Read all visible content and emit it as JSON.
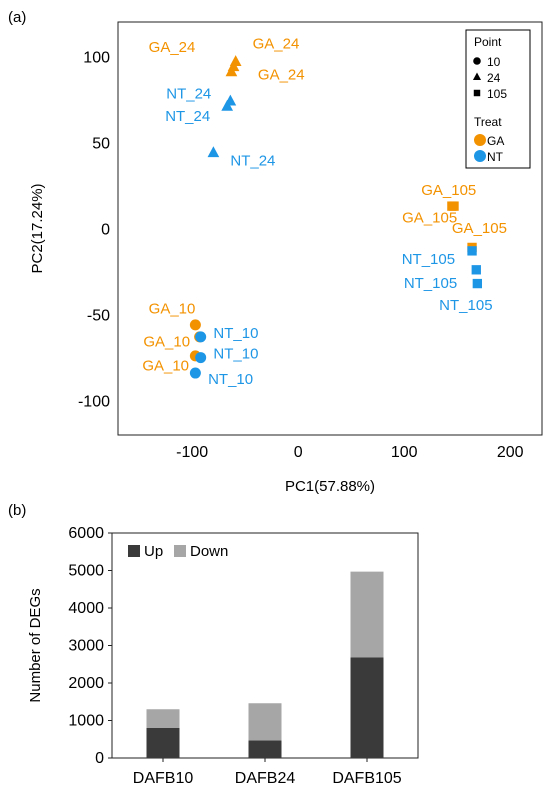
{
  "chart_data": [
    {
      "type": "scatter",
      "panel_label": "(a)",
      "xlabel": "PC1(57.88%)",
      "ylabel": "PC2(17.24%)",
      "xlim": [
        -170,
        230
      ],
      "ylim": [
        -120,
        120
      ],
      "x_ticks": [
        -100,
        0,
        100,
        200
      ],
      "y_ticks": [
        -100,
        -50,
        0,
        50,
        100
      ],
      "grid": false,
      "legend": {
        "placement": "top-right",
        "shape_title": "Point",
        "shapes": [
          {
            "label": "10",
            "shape": "circle"
          },
          {
            "label": "24",
            "shape": "triangle"
          },
          {
            "label": "105",
            "shape": "square"
          }
        ],
        "color_title": "Treat",
        "colors": [
          {
            "label": "GA",
            "color": "#f39200"
          },
          {
            "label": "NT",
            "color": "#1e96e6"
          }
        ]
      },
      "points": [
        {
          "x": -59,
          "y": 97,
          "treat": "GA",
          "shape": "triangle"
        },
        {
          "x": -61,
          "y": 94,
          "treat": "GA",
          "shape": "triangle"
        },
        {
          "x": -63,
          "y": 91,
          "treat": "GA",
          "shape": "triangle"
        },
        {
          "x": -64,
          "y": 74,
          "treat": "NT",
          "shape": "triangle"
        },
        {
          "x": -67,
          "y": 71,
          "treat": "NT",
          "shape": "triangle"
        },
        {
          "x": -80,
          "y": 44,
          "treat": "NT",
          "shape": "triangle"
        },
        {
          "x": 145,
          "y": 13,
          "treat": "GA",
          "shape": "square"
        },
        {
          "x": 147,
          "y": 13,
          "treat": "GA",
          "shape": "square"
        },
        {
          "x": 164,
          "y": -11,
          "treat": "GA",
          "shape": "square"
        },
        {
          "x": 164,
          "y": -13,
          "treat": "NT",
          "shape": "square"
        },
        {
          "x": 168,
          "y": -24,
          "treat": "NT",
          "shape": "square"
        },
        {
          "x": 169,
          "y": -32,
          "treat": "NT",
          "shape": "square"
        },
        {
          "x": -97,
          "y": -56,
          "treat": "GA",
          "shape": "circle"
        },
        {
          "x": -93,
          "y": -63,
          "treat": "GA",
          "shape": "circle"
        },
        {
          "x": -97,
          "y": -74,
          "treat": "GA",
          "shape": "circle"
        },
        {
          "x": -92,
          "y": -63,
          "treat": "NT",
          "shape": "circle"
        },
        {
          "x": -92,
          "y": -75,
          "treat": "NT",
          "shape": "circle"
        },
        {
          "x": -97,
          "y": -84,
          "treat": "NT",
          "shape": "circle"
        }
      ],
      "annotations": [
        {
          "text": "GA_24",
          "treat": "GA",
          "x": -97,
          "y": 106,
          "anchor": "end"
        },
        {
          "text": "GA_24",
          "treat": "GA",
          "x": -43,
          "y": 108,
          "anchor": "start"
        },
        {
          "text": "GA_24",
          "treat": "GA",
          "x": -38,
          "y": 90,
          "anchor": "start"
        },
        {
          "text": "NT_24",
          "treat": "NT",
          "x": -82,
          "y": 79,
          "anchor": "end"
        },
        {
          "text": "NT_24",
          "treat": "NT",
          "x": -83,
          "y": 66,
          "anchor": "end"
        },
        {
          "text": "NT_24",
          "treat": "NT",
          "x": -64,
          "y": 40,
          "anchor": "start"
        },
        {
          "text": "GA_105",
          "treat": "GA",
          "x": 168,
          "y": 23,
          "anchor": "end"
        },
        {
          "text": "GA_105",
          "treat": "GA",
          "x": 150,
          "y": 7,
          "anchor": "end"
        },
        {
          "text": "GA_105",
          "treat": "GA",
          "x": 145,
          "y": 1,
          "anchor": "start"
        },
        {
          "text": "NT_105",
          "treat": "NT",
          "x": 148,
          "y": -17,
          "anchor": "end"
        },
        {
          "text": "NT_105",
          "treat": "NT",
          "x": 150,
          "y": -31,
          "anchor": "end"
        },
        {
          "text": "NT_105",
          "treat": "NT",
          "x": 133,
          "y": -44,
          "anchor": "start"
        },
        {
          "text": "GA_10",
          "treat": "GA",
          "x": -97,
          "y": -46,
          "anchor": "end"
        },
        {
          "text": "GA_10",
          "treat": "GA",
          "x": -102,
          "y": -65,
          "anchor": "end"
        },
        {
          "text": "GA_10",
          "treat": "GA",
          "x": -103,
          "y": -79,
          "anchor": "end"
        },
        {
          "text": "NT_10",
          "treat": "NT",
          "x": -80,
          "y": -60,
          "anchor": "start"
        },
        {
          "text": "NT_10",
          "treat": "NT",
          "x": -80,
          "y": -72,
          "anchor": "start"
        },
        {
          "text": "NT_10",
          "treat": "NT",
          "x": -85,
          "y": -87,
          "anchor": "start"
        }
      ]
    },
    {
      "type": "bar",
      "stacked": true,
      "panel_label": "(b)",
      "categories": [
        "DAFB10",
        "DAFB24",
        "DAFB105"
      ],
      "ylabel": "Number of DEGs",
      "xlabel": "",
      "ylim": [
        0,
        6000
      ],
      "y_ticks": [
        0,
        1000,
        2000,
        3000,
        4000,
        5000,
        6000
      ],
      "grid": false,
      "legend": {
        "placement": "top-left"
      },
      "series": [
        {
          "name": "Up",
          "values": [
            800,
            470,
            2680
          ],
          "color": "#3a3a3a"
        },
        {
          "name": "Down",
          "values": [
            500,
            990,
            2290
          ],
          "color": "#a6a6a6"
        }
      ]
    }
  ]
}
